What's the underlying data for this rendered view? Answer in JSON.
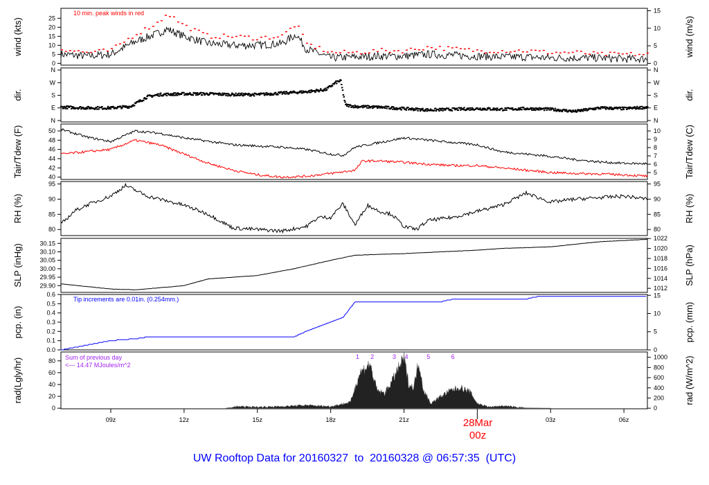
{
  "title": "UW Rooftop Data for 20160327  to  20160328 @ 06:57:35  (UTC)",
  "date_label": "28Mar",
  "date_hour": "00z",
  "colors": {
    "title": "#0000ff",
    "peak": "#ff0000",
    "dew": "#ff0000",
    "pcp": "#0000ff",
    "rad_note": "#a020f0",
    "date": "#ff0000"
  },
  "chart_data": {
    "type": "line",
    "x_range_hours": [
      6.96,
      30.96
    ],
    "x_ticks": [
      {
        "h": 9,
        "label": "09z"
      },
      {
        "h": 12,
        "label": "12z"
      },
      {
        "h": 15,
        "label": "15z"
      },
      {
        "h": 18,
        "label": "18z"
      },
      {
        "h": 21,
        "label": "21z"
      },
      {
        "h": 24,
        "label": ""
      },
      {
        "h": 27,
        "label": "03z"
      },
      {
        "h": 30,
        "label": "06z"
      }
    ],
    "panels": [
      {
        "id": "wind",
        "ylabel": "wind (kts)",
        "ylabel_right": "wind (m/s)",
        "ylim": [
          -1,
          30.5
        ],
        "yticks": [
          "0",
          "5",
          "10",
          "15",
          "20",
          "25"
        ],
        "yticks_right": [
          {
            "v": 0,
            "label": "0"
          },
          {
            "v": 9.72,
            "label": "5"
          },
          {
            "v": 19.44,
            "label": "10"
          },
          {
            "v": 29.16,
            "label": "15"
          }
        ],
        "note": "10 min. peak winds in red",
        "series": [
          {
            "name": "wind",
            "x": [
              7,
              8,
              9,
              10,
              11,
              11.3,
              12,
              13,
              14,
              15,
              16,
              16.6,
              17,
              18,
              19,
              20,
              21,
              22,
              23,
              24,
              25,
              26,
              27,
              28,
              29,
              30,
              31
            ],
            "y": [
              5,
              4,
              5,
              12,
              17,
              19,
              15,
              11,
              10,
              10,
              11,
              16,
              8,
              3,
              3.5,
              4,
              4,
              5,
              4.5,
              4,
              3.5,
              3.5,
              3,
              3,
              3,
              2.5,
              2.5
            ]
          },
          {
            "name": "peak",
            "x": [
              7,
              8,
              9,
              10,
              11,
              11.3,
              12,
              13,
              14,
              15,
              16,
              16.6,
              17,
              18,
              19,
              20,
              21,
              22,
              23,
              24,
              25,
              26,
              27,
              28,
              29,
              30,
              31
            ],
            "y": [
              8,
              6,
              7,
              16,
              23,
              28,
              21,
              15,
              15,
              14,
              15,
              22,
              11,
              6,
              6,
              7,
              7,
              9,
              8,
              7,
              7,
              7,
              6,
              6,
              5,
              5,
              5
            ]
          }
        ]
      },
      {
        "id": "dir",
        "ylabel": "dir.",
        "ylabel_right": "dir.",
        "ylim": [
          -10,
          375
        ],
        "yticks_labeled": [
          {
            "v": 0,
            "label": "N"
          },
          {
            "v": 90,
            "label": "E"
          },
          {
            "v": 180,
            "label": "S"
          },
          {
            "v": 270,
            "label": "W"
          },
          {
            "v": 360,
            "label": "N"
          }
        ],
        "series": [
          {
            "name": "direction",
            "x": [
              7,
              8,
              9,
              9.8,
              10.5,
              11,
              12,
              13,
              14,
              15,
              16,
              17,
              17.8,
              18.2,
              18.4,
              18.6,
              19,
              20,
              21,
              22,
              23,
              24,
              25,
              26,
              27,
              28,
              29,
              30,
              31
            ],
            "y": [
              95,
              90,
              90,
              100,
              170,
              185,
              190,
              190,
              185,
              185,
              195,
              205,
              220,
              270,
              285,
              110,
              100,
              95,
              85,
              75,
              80,
              85,
              80,
              85,
              80,
              65,
              90,
              85,
              95
            ]
          }
        ]
      },
      {
        "id": "temp",
        "ylabel": "Tair/Tdew (F)",
        "ylabel_right": "Tair/Tdew (C)",
        "ylim": [
          39.5,
          51.5
        ],
        "yticks": [
          "40",
          "42",
          "44",
          "46",
          "48",
          "50"
        ],
        "yticks_right": [
          {
            "v": 41,
            "label": "5"
          },
          {
            "v": 42.8,
            "label": "6"
          },
          {
            "v": 44.6,
            "label": "7"
          },
          {
            "v": 46.4,
            "label": "8"
          },
          {
            "v": 48.2,
            "label": "9"
          },
          {
            "v": 50,
            "label": "10"
          }
        ],
        "series": [
          {
            "name": "air-temperature",
            "x": [
              7,
              8,
              9,
              10,
              11,
              12,
              14,
              16,
              17,
              18,
              18.5,
              19,
              20,
              21,
              22,
              23,
              24,
              25,
              26,
              27,
              28,
              29,
              30,
              31
            ],
            "y": [
              50.3,
              48.7,
              47.7,
              50,
              49.5,
              48.5,
              47,
              46.5,
              46,
              45,
              44.7,
              46.5,
              47.5,
              48.5,
              48,
              47.5,
              47,
              45.5,
              45,
              44.5,
              43.8,
              43.3,
              43,
              42.9
            ]
          },
          {
            "name": "dewpoint",
            "x": [
              7,
              8,
              9,
              10,
              11,
              12,
              13,
              14,
              15,
              16,
              17,
              18,
              19,
              19.3,
              20,
              21,
              22,
              23,
              24,
              25,
              26,
              27,
              28,
              29,
              30,
              31
            ],
            "y": [
              45,
              45.5,
              46,
              48,
              47,
              45,
              43,
              41.5,
              40.5,
              40,
              40.2,
              40.8,
              41.5,
              43.5,
              43.5,
              43.2,
              42.8,
              42.5,
              42.5,
              42,
              41.5,
              41,
              40.8,
              40.7,
              40.5,
              40.2
            ]
          }
        ]
      },
      {
        "id": "rh",
        "ylabel": "RH (%)",
        "ylabel_right": "RH (%)",
        "ylim": [
          78,
          95.8
        ],
        "yticks": [
          "80",
          "85",
          "90",
          "95"
        ],
        "series": [
          {
            "name": "relative-humidity",
            "x": [
              7,
              7.5,
              8,
              9,
              9.6,
              10.5,
              11,
              12,
              13,
              14,
              15,
              16,
              17,
              17.5,
              18,
              18.5,
              19,
              19.5,
              20,
              20.5,
              21,
              21.5,
              22,
              23,
              24,
              25,
              26,
              27,
              28,
              29,
              30,
              31
            ],
            "y": [
              82,
              86,
              88,
              91,
              94.5,
              91,
              90,
              88,
              85,
              80.5,
              80,
              79.5,
              81,
              84,
              84,
              88.5,
              81.5,
              88,
              86,
              85,
              81,
              80,
              83,
              84,
              86,
              88,
              92,
              89,
              90,
              90.5,
              91,
              90
            ]
          }
        ]
      },
      {
        "id": "slp",
        "ylabel": "SLP (inHg)",
        "ylabel_right": "SLP (hPa)",
        "ylim": [
          29.86,
          30.18
        ],
        "yticks": [
          "29.90",
          "29.95",
          "30.00",
          "30.05",
          "30.10",
          "30.15"
        ],
        "yticks_right": [
          {
            "v": 29.884,
            "label": "1012"
          },
          {
            "v": 29.943,
            "label": "1014"
          },
          {
            "v": 30.002,
            "label": "1016"
          },
          {
            "v": 30.061,
            "label": "1018"
          },
          {
            "v": 30.12,
            "label": "1020"
          },
          {
            "v": 30.179,
            "label": "1022"
          }
        ],
        "series": [
          {
            "name": "sea-level-pressure",
            "x": [
              7,
              9,
              10,
              12,
              13,
              15,
              16.5,
              18,
              19,
              21,
              24,
              25,
              27,
              29,
              31
            ],
            "y": [
              29.91,
              29.88,
              29.875,
              29.9,
              29.94,
              29.96,
              30.0,
              30.05,
              30.08,
              30.09,
              30.11,
              30.12,
              30.13,
              30.16,
              30.175
            ]
          }
        ]
      },
      {
        "id": "pcp",
        "ylabel": "pcp. (in)",
        "ylabel_right": "pcp. (mm)",
        "ylim": [
          0,
          0.6
        ],
        "yticks": [
          "0.0",
          "0.1",
          "0.2",
          "0.3",
          "0.4",
          "0.5",
          "0.6"
        ],
        "yticks_right": [
          {
            "v": 0,
            "label": "0"
          },
          {
            "v": 0.1969,
            "label": "5"
          },
          {
            "v": 0.3937,
            "label": "10"
          },
          {
            "v": 0.5906,
            "label": "15"
          }
        ],
        "note": "Tip increments are 0.01in. (0.254mm.)",
        "series": [
          {
            "name": "precipitation",
            "x": [
              7,
              9,
              10,
              10.5,
              16.5,
              17,
              18,
              18.5,
              19,
              22.5,
              23,
              26,
              26.5,
              31
            ],
            "y": [
              0,
              0.1,
              0.12,
              0.14,
              0.14,
              0.2,
              0.3,
              0.35,
              0.52,
              0.52,
              0.55,
              0.55,
              0.58,
              0.58
            ]
          }
        ]
      },
      {
        "id": "rad",
        "ylabel": "rad(Lgly/hr)",
        "ylabel_right": "rad (W/m^2)",
        "ylim": [
          -1,
          95
        ],
        "yticks": [
          "0",
          "20",
          "40",
          "60",
          "80"
        ],
        "yticks_right": [
          {
            "v": 0,
            "label": "0"
          },
          {
            "v": 17.2,
            "label": "200"
          },
          {
            "v": 34.4,
            "label": "400"
          },
          {
            "v": 51.6,
            "label": "600"
          },
          {
            "v": 68.8,
            "label": "800"
          },
          {
            "v": 86,
            "label": "1000"
          }
        ],
        "note_lines": [
          "Sum of previous day",
          "<--- 14.47 MJoules/m^2"
        ],
        "markers": [
          {
            "h": 19.1,
            "label": "1"
          },
          {
            "h": 19.7,
            "label": "2"
          },
          {
            "h": 20.6,
            "label": "3"
          },
          {
            "h": 21.1,
            "label": "4"
          },
          {
            "h": 22.0,
            "label": "5"
          },
          {
            "h": 23.0,
            "label": "6"
          }
        ],
        "series": [
          {
            "name": "radiation",
            "x": [
              13.7,
              14.2,
              15,
              16,
              17,
              18,
              18.8,
              19.2,
              19.6,
              19.9,
              20.2,
              20.5,
              20.8,
              21.0,
              21.2,
              21.4,
              21.6,
              21.8,
              22.1,
              22.5,
              22.9,
              23.3,
              23.7,
              24,
              24.5,
              25,
              26,
              27
            ],
            "y": [
              0,
              3,
              2,
              3,
              5,
              3,
              10,
              60,
              75,
              30,
              25,
              45,
              70,
              85,
              40,
              35,
              80,
              30,
              8,
              20,
              30,
              35,
              28,
              8,
              2,
              4,
              0.5,
              0
            ]
          }
        ]
      }
    ]
  }
}
